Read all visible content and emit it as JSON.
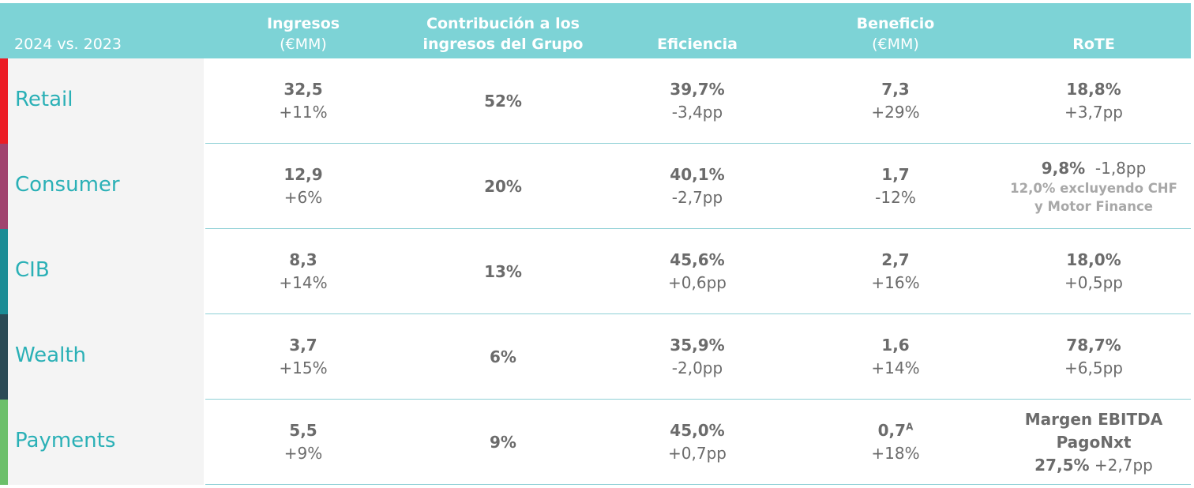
{
  "header": {
    "period": "2024 vs. 2023",
    "ingresos": [
      "Ingresos",
      "(€MM)"
    ],
    "contribucion": [
      "Contribución a los",
      "ingresos del Grupo"
    ],
    "eficiencia": "Eficiencia",
    "beneficio": [
      "Beneficio",
      "(€MM)"
    ],
    "rote": "RoTE"
  },
  "colors": {
    "header_bg": "#7dd3d6",
    "segment_text": "#2ab0b6",
    "retail": "#ec1c24",
    "consumer": "#a0426e",
    "cib": "#1b8c95",
    "wealth": "#2b4a55",
    "payments": "#6cbf6a"
  },
  "rows": [
    {
      "segment": "Retail",
      "ingresos": {
        "value": "32,5",
        "change": "+11%"
      },
      "contribucion": "52%",
      "eficiencia": {
        "value": "39,7%",
        "change": "-3,4pp"
      },
      "beneficio": {
        "value": "7,3",
        "change": "+29%"
      },
      "rote": {
        "value": "18,8%",
        "change": "+3,7pp"
      }
    },
    {
      "segment": "Consumer",
      "ingresos": {
        "value": "12,9",
        "change": "+6%"
      },
      "contribucion": "20%",
      "eficiencia": {
        "value": "40,1%",
        "change": "-2,7pp"
      },
      "beneficio": {
        "value": "1,7",
        "change": "-12%"
      },
      "rote": {
        "value": "9,8%",
        "change": "-1,8pp",
        "note": [
          "12,0% excluyendo CHF",
          "y Motor Finance"
        ]
      }
    },
    {
      "segment": "CIB",
      "ingresos": {
        "value": "8,3",
        "change": "+14%"
      },
      "contribucion": "13%",
      "eficiencia": {
        "value": "45,6%",
        "change": "+0,6pp"
      },
      "beneficio": {
        "value": "2,7",
        "change": "+16%"
      },
      "rote": {
        "value": "18,0%",
        "change": "+0,5pp"
      }
    },
    {
      "segment": "Wealth",
      "ingresos": {
        "value": "3,7",
        "change": "+15%"
      },
      "contribucion": "6%",
      "eficiencia": {
        "value": "35,9%",
        "change": "-2,0pp"
      },
      "beneficio": {
        "value": "1,6",
        "change": "+14%"
      },
      "rote": {
        "value": "78,7%",
        "change": "+6,5pp"
      }
    },
    {
      "segment": "Payments",
      "ingresos": {
        "value": "5,5",
        "change": "+9%"
      },
      "contribucion": "9%",
      "eficiencia": {
        "value": "45,0%",
        "change": "+0,7pp"
      },
      "beneficio": {
        "value": "0,7",
        "superscript": "A",
        "change": "+18%"
      },
      "rote": {
        "label": [
          "Margen EBITDA",
          "PagoNxt"
        ],
        "value": "27,5%",
        "change": "+2,7pp"
      }
    }
  ]
}
